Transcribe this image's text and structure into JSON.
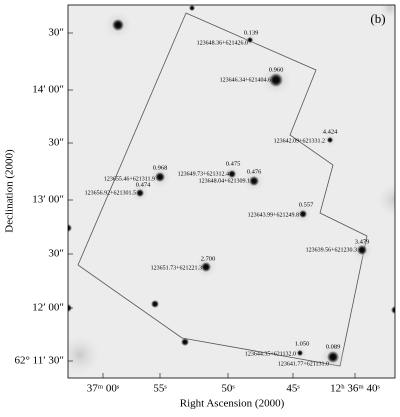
{
  "panel_label": "(b)",
  "axes": {
    "x_title": "Right Ascension (2000)",
    "y_title": "Declination (2000)",
    "x_ticks": [
      "37ᵐ 00ˢ",
      "55ˢ",
      "50ˢ",
      "45ˢ",
      "12ʰ 36ᵐ 40ˢ"
    ],
    "y_ticks": [
      "30″",
      "14′ 00″",
      "30″",
      "13′ 00″",
      "30″",
      "12′ 00″",
      "62° 11′ 30″"
    ]
  },
  "sources": [
    {
      "name": "123648.36+621426.0",
      "z": "0.139"
    },
    {
      "name": "123646.34+621404.6",
      "z": "0.960"
    },
    {
      "name": "123642.09+621331.2",
      "z": "4.424"
    },
    {
      "name": "123655.46+621311.9",
      "z": "0.968"
    },
    {
      "name": "123649.73+621312.4",
      "z": "0.475"
    },
    {
      "name": "123648.04+621309.1",
      "z": "0.476"
    },
    {
      "name": "123656.92+621301.5",
      "z": "0.474"
    },
    {
      "name": "123643.99+621249.8",
      "z": "0.557"
    },
    {
      "name": "123639.56+621230.3",
      "z": "3.479"
    },
    {
      "name": "123651.73+621221.3",
      "z": "2.700"
    },
    {
      "name": "123644.35+621132.0",
      "z": "1.050"
    },
    {
      "name": "123641.77+621131.0",
      "z": "0.089"
    }
  ]
}
